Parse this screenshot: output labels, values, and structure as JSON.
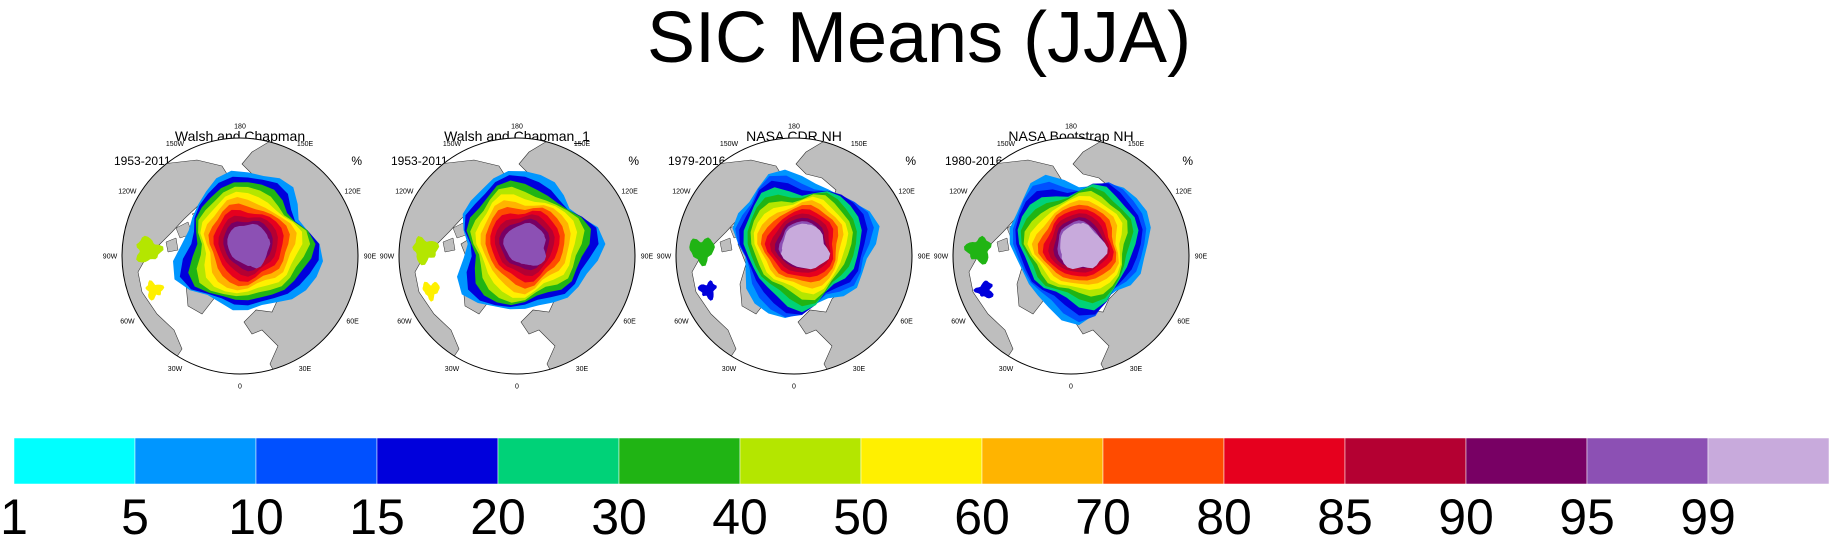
{
  "title": "SIC Means (JJA)",
  "panels": [
    {
      "title": "Walsh and Chapman",
      "period": "1953-2011",
      "unit": "%"
    },
    {
      "title": "Walsh and Chapman_1",
      "period": "1953-2011",
      "unit": "%"
    },
    {
      "title": "NASA CDR NH",
      "period": "1979-2016",
      "unit": "%"
    },
    {
      "title": "NASA Bootstrap NH",
      "period": "1980-2016",
      "unit": "%"
    }
  ],
  "longitude_labels": [
    "180",
    "150E",
    "120E",
    "90E",
    "60E",
    "30E",
    "0",
    "30W",
    "60W",
    "90W",
    "120W",
    "150W"
  ],
  "colorbar": {
    "labels": [
      "1",
      "5",
      "10",
      "15",
      "20",
      "30",
      "40",
      "50",
      "60",
      "70",
      "80",
      "85",
      "90",
      "95",
      "99"
    ],
    "colors": [
      "#00ffff",
      "#0096ff",
      "#0050ff",
      "#0000dc",
      "#00d278",
      "#20b414",
      "#b4e600",
      "#fff000",
      "#ffb400",
      "#ff4b00",
      "#e6001e",
      "#b40032",
      "#780064",
      "#8c50b4",
      "#c8aadc"
    ]
  },
  "chart_data": {
    "type": "heatmap",
    "title": "SIC Means (JJA)",
    "variable": "SIC",
    "unit": "%",
    "levels": [
      1,
      5,
      10,
      15,
      20,
      30,
      40,
      50,
      60,
      70,
      80,
      85,
      90,
      95,
      99
    ],
    "level_colors": [
      "#00ffff",
      "#0096ff",
      "#0050ff",
      "#0000dc",
      "#00d278",
      "#20b414",
      "#b4e600",
      "#fff000",
      "#ffb400",
      "#ff4b00",
      "#e6001e",
      "#b40032",
      "#780064",
      "#8c50b4",
      "#c8aadc"
    ],
    "projection": "north polar stereographic",
    "land_color": "#bebebe",
    "panels": [
      {
        "title": "Walsh and Chapman",
        "period": "1953-2011"
      },
      {
        "title": "Walsh and Chapman_1",
        "period": "1953-2011"
      },
      {
        "title": "NASA CDR NH",
        "period": "1979-2016"
      },
      {
        "title": "NASA Bootstrap NH",
        "period": "1980-2016"
      }
    ]
  }
}
